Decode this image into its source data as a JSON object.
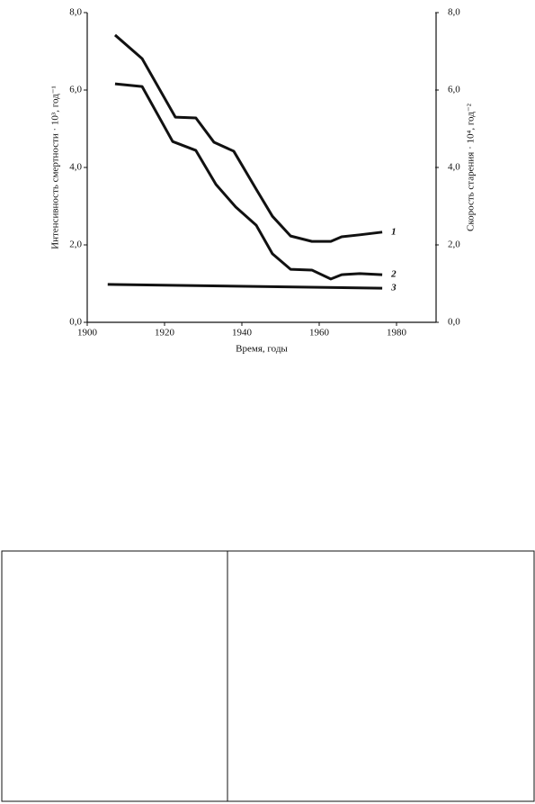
{
  "chart_data": {
    "type": "line",
    "xlabel": "Время, годы",
    "ylabel": "Интенсивность смертности · 10³, год⁻¹",
    "y2label": "Скорость старения · 10⁴, год⁻²",
    "xlim": [
      1900,
      1990
    ],
    "xticks": [
      1900,
      1920,
      1940,
      1960,
      1980
    ],
    "ylim": [
      0,
      8
    ],
    "yticks": [
      {
        "value": 0,
        "label": "0,0"
      },
      {
        "value": 2,
        "label": "2,0"
      },
      {
        "value": 4,
        "label": "4,0"
      },
      {
        "value": 6,
        "label": "6,0"
      },
      {
        "value": 8,
        "label": "8,0"
      }
    ],
    "y2lim": [
      0,
      8
    ],
    "y2ticks": [
      {
        "value": 0,
        "label": "0,0"
      },
      {
        "value": 2,
        "label": "2,0"
      },
      {
        "value": 4,
        "label": "4,0"
      },
      {
        "value": 6,
        "label": "6,0"
      },
      {
        "value": 8,
        "label": "8,0"
      }
    ],
    "series": [
      {
        "name": "1",
        "color": "#111111",
        "x": [
          1907.2,
          1914.2,
          1922.8,
          1928.1,
          1932.8,
          1937.9,
          1943.7,
          1947.9,
          1952.6,
          1958.1,
          1963,
          1965.8,
          1970.5,
          1976.3
        ],
        "values": [
          7.42,
          6.81,
          5.3,
          5.28,
          4.65,
          4.42,
          3.44,
          2.74,
          2.23,
          2.09,
          2.09,
          2.21,
          2.26,
          2.33
        ]
      },
      {
        "name": "2",
        "color": "#111111",
        "x": [
          1907.2,
          1914.2,
          1922.1,
          1928.1,
          1933.3,
          1938.4,
          1943.7,
          1947.9,
          1952.6,
          1958.1,
          1963,
          1965.8,
          1970.5,
          1976.3
        ],
        "values": [
          6.16,
          6.09,
          4.67,
          4.44,
          3.56,
          2.98,
          2.51,
          1.77,
          1.37,
          1.35,
          1.12,
          1.23,
          1.26,
          1.23
        ]
      },
      {
        "name": "3",
        "color": "#111111",
        "axis": "y2",
        "x": [
          1905.3,
          1976.3
        ],
        "values": [
          0.98,
          0.88
        ]
      }
    ]
  }
}
